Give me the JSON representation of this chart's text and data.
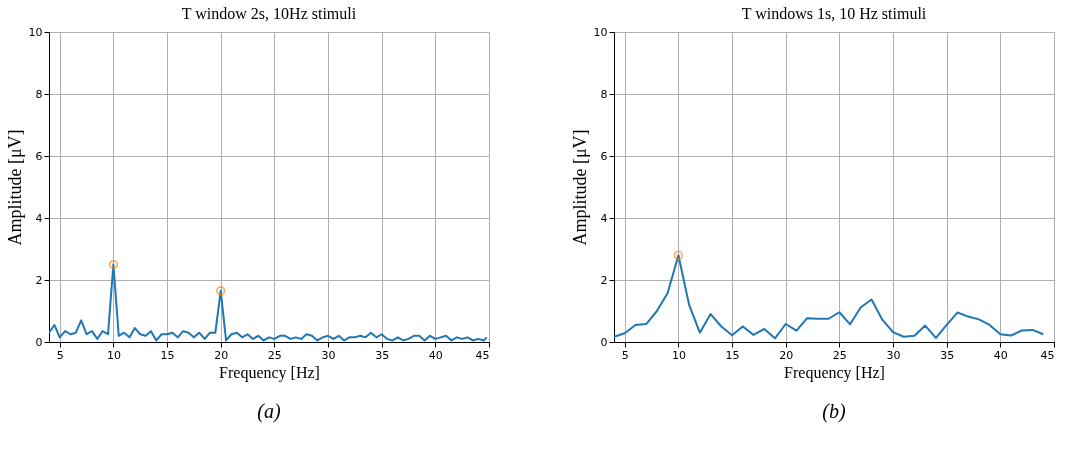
{
  "chart_data": [
    {
      "type": "line",
      "title": "T window 2s, 10Hz stimuli",
      "xlabel": "Frequency [Hz]",
      "ylabel": "Amplitude [μV]",
      "xlim": [
        4,
        45
      ],
      "xticks": [
        5,
        10,
        15,
        20,
        25,
        30,
        35,
        40,
        45
      ],
      "ylim": [
        0,
        10
      ],
      "yticks": [
        0,
        2,
        4,
        6,
        8,
        10
      ],
      "grid": true,
      "annotations": [
        "(a)"
      ],
      "series": [
        {
          "color": "#1f77b4",
          "x": [
            4.0,
            4.5,
            5.0,
            5.5,
            6.0,
            6.5,
            7.0,
            7.5,
            8.0,
            8.5,
            9.0,
            9.5,
            10.0,
            10.5,
            11.0,
            11.5,
            12.0,
            12.5,
            13.0,
            13.5,
            14.0,
            14.5,
            15.0,
            15.5,
            16.0,
            16.5,
            17.0,
            17.5,
            18.0,
            18.5,
            19.0,
            19.5,
            20.0,
            20.5,
            21.0,
            21.5,
            22.0,
            22.5,
            23.0,
            23.5,
            24.0,
            24.5,
            25.0,
            25.5,
            26.0,
            26.5,
            27.0,
            27.5,
            28.0,
            28.5,
            29.0,
            29.5,
            30.0,
            30.5,
            31.0,
            31.5,
            32.0,
            32.5,
            33.0,
            33.5,
            34.0,
            34.5,
            35.0,
            35.5,
            36.0,
            36.5,
            37.0,
            37.5,
            38.0,
            38.5,
            39.0,
            39.5,
            40.0,
            40.5,
            41.0,
            41.5,
            42.0,
            42.5,
            43.0,
            43.5,
            44.0,
            44.5,
            44.8
          ],
          "values": [
            0.3,
            0.55,
            0.15,
            0.35,
            0.25,
            0.3,
            0.7,
            0.25,
            0.35,
            0.1,
            0.35,
            0.25,
            2.5,
            0.2,
            0.3,
            0.15,
            0.45,
            0.25,
            0.2,
            0.35,
            0.05,
            0.25,
            0.25,
            0.3,
            0.15,
            0.35,
            0.3,
            0.15,
            0.3,
            0.1,
            0.3,
            0.3,
            1.65,
            0.05,
            0.25,
            0.3,
            0.15,
            0.25,
            0.1,
            0.2,
            0.05,
            0.15,
            0.1,
            0.2,
            0.2,
            0.1,
            0.15,
            0.1,
            0.25,
            0.2,
            0.05,
            0.15,
            0.2,
            0.1,
            0.2,
            0.05,
            0.15,
            0.15,
            0.2,
            0.15,
            0.3,
            0.15,
            0.25,
            0.1,
            0.05,
            0.15,
            0.05,
            0.1,
            0.2,
            0.2,
            0.05,
            0.2,
            0.1,
            0.15,
            0.2,
            0.05,
            0.15,
            0.1,
            0.15,
            0.05,
            0.1,
            0.05,
            0.15
          ]
        },
        {
          "type": "scatter",
          "color": "#ff7f0e",
          "marker": "circle",
          "x": [
            10,
            20
          ],
          "values": [
            2.5,
            1.65
          ]
        }
      ]
    },
    {
      "type": "line",
      "title": "T windows 1s, 10 Hz stimuli",
      "xlabel": "Frequency [Hz]",
      "ylabel": "Amplitude [μV]",
      "xlim": [
        4,
        45
      ],
      "xticks": [
        5,
        10,
        15,
        20,
        25,
        30,
        35,
        40,
        45
      ],
      "ylim": [
        0,
        10
      ],
      "yticks": [
        0,
        2,
        4,
        6,
        8,
        10
      ],
      "grid": true,
      "annotations": [
        "(b)"
      ],
      "series": [
        {
          "color": "#1f77b4",
          "x": [
            4,
            5,
            6,
            7,
            8,
            9,
            10,
            11,
            12,
            13,
            14,
            15,
            16,
            17,
            18,
            19,
            20,
            21,
            22,
            23,
            24,
            25,
            26,
            27,
            28,
            29,
            30,
            31,
            32,
            33,
            34,
            35,
            36,
            37,
            38,
            39,
            40,
            41,
            42,
            43,
            44
          ],
          "values": [
            0.17,
            0.28,
            0.55,
            0.58,
            1.0,
            1.58,
            2.8,
            1.2,
            0.3,
            0.9,
            0.5,
            0.22,
            0.5,
            0.23,
            0.42,
            0.12,
            0.58,
            0.37,
            0.77,
            0.75,
            0.75,
            0.96,
            0.57,
            1.12,
            1.37,
            0.72,
            0.32,
            0.17,
            0.2,
            0.53,
            0.13,
            0.55,
            0.95,
            0.82,
            0.73,
            0.55,
            0.25,
            0.21,
            0.37,
            0.39,
            0.25
          ]
        },
        {
          "type": "scatter",
          "color": "#ff7f0e",
          "marker": "circle",
          "x": [
            10
          ],
          "values": [
            2.8
          ]
        }
      ]
    }
  ]
}
